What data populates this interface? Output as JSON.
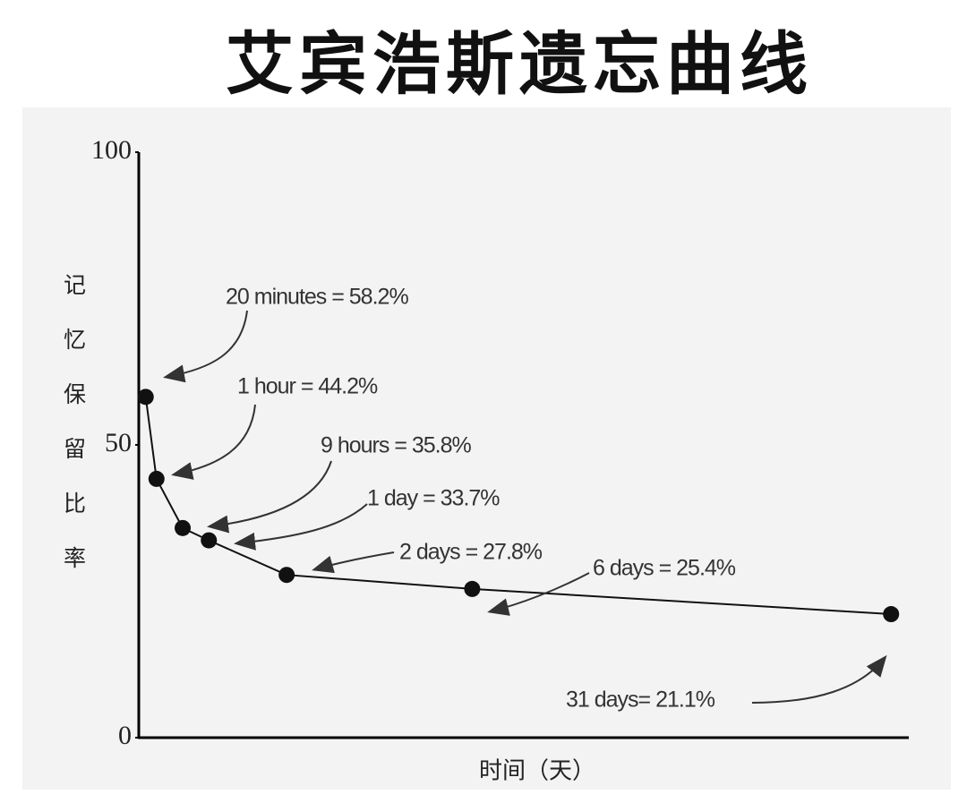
{
  "chart_data": {
    "type": "line",
    "title": "艾宾浩斯遗忘曲线",
    "y_label": "记忆保留比率",
    "x_label": "时间（天）",
    "categories": [
      null,
      null,
      null,
      null,
      null,
      null,
      null
    ],
    "values": [
      58.2,
      44.2,
      35.8,
      33.7,
      27.8,
      25.4,
      21.1
    ],
    "value_labels": [
      "20 minutes = 58.2%",
      "1 hour = 44.2%",
      "9 hours = 35.8%",
      "1 day = 33.7%",
      "2 days = 27.8%",
      "6 days = 25.4%",
      "31 days= 21.1%"
    ],
    "color": "#111111",
    "ylim": [
      0,
      100
    ],
    "yticks": [
      0,
      50,
      100
    ]
  }
}
